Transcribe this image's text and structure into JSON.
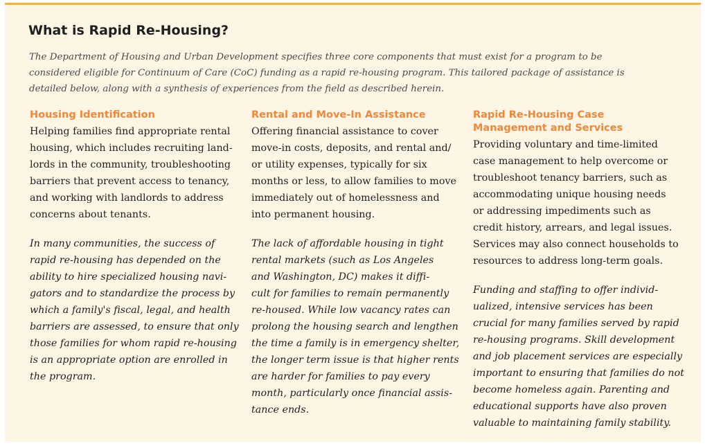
{
  "title": "What is Rapid Re-Housing?",
  "intro": "The Department of Housing and Urban Development specifies three core components that must exist for a program to be\nconsidered eligible for Continuum of Care (CoC) funding as a rapid re-housing program. This tailored package of assistance is\ndetailed below, along with a synthesis of experiences from the field as described herein.",
  "columns": [
    {
      "heading": "Housing Identification",
      "body": "Helping families find appropriate rental\nhousing, which includes recruiting land-\nlords in the community, troubleshooting\nbarriers that prevent access to tenancy,\nand working with landlords to address\nconcerns about tenants.",
      "note": "In many communities, the success of\nrapid re-housing has depended on the\nability to hire specialized housing navi-\ngators and to standardize the process by\nwhich a family's fiscal, legal, and health\nbarriers are assessed, to ensure that only\nthose families for whom rapid re-housing\nis an appropriate option are enrolled in\nthe program."
    },
    {
      "heading": "Rental and Move-In Assistance",
      "body": "Offering financial assistance to cover\nmove-in costs, deposits, and rental and/\nor utility expenses, typically for six\nmonths or less, to allow families to move\nimmediately out of homelessness and\ninto permanent housing.",
      "note": "The lack of affordable housing in tight\nrental markets (such as Los Angeles\nand Washington, DC) makes it diffi-\ncult for families to remain permanently\nre-housed. While low vacancy rates can\nprolong the housing search and lengthen\nthe time a family is in emergency shelter,\nthe longer term issue is that higher rents\nare harder for families to pay every\nmonth, particularly once financial assis-\ntance ends."
    },
    {
      "heading": "Rapid Re-Housing Case\nManagement and Services",
      "body": "Providing voluntary and time-limited\ncase management to help overcome or\ntroubleshoot tenancy barriers, such as\naccommodating unique housing needs\nor addressing impediments such as\ncredit history, arrears, and legal issues.\nServices may also connect households to\nresources to address long-term goals.",
      "note": "Funding and staffing to offer individ-\nualized, intensive services has been\ncrucial for many families served by rapid\nre-housing programs. Skill development\nand job placement services are especially\nimportant to ensuring that families do not\nbecome homeless again. Parenting and\neducational supports have also proven\nvaluable to maintaining family stability."
    }
  ],
  "colors": {
    "background": "#fef6e4",
    "accent_border": "#f8b133",
    "heading": "#f0873a"
  }
}
